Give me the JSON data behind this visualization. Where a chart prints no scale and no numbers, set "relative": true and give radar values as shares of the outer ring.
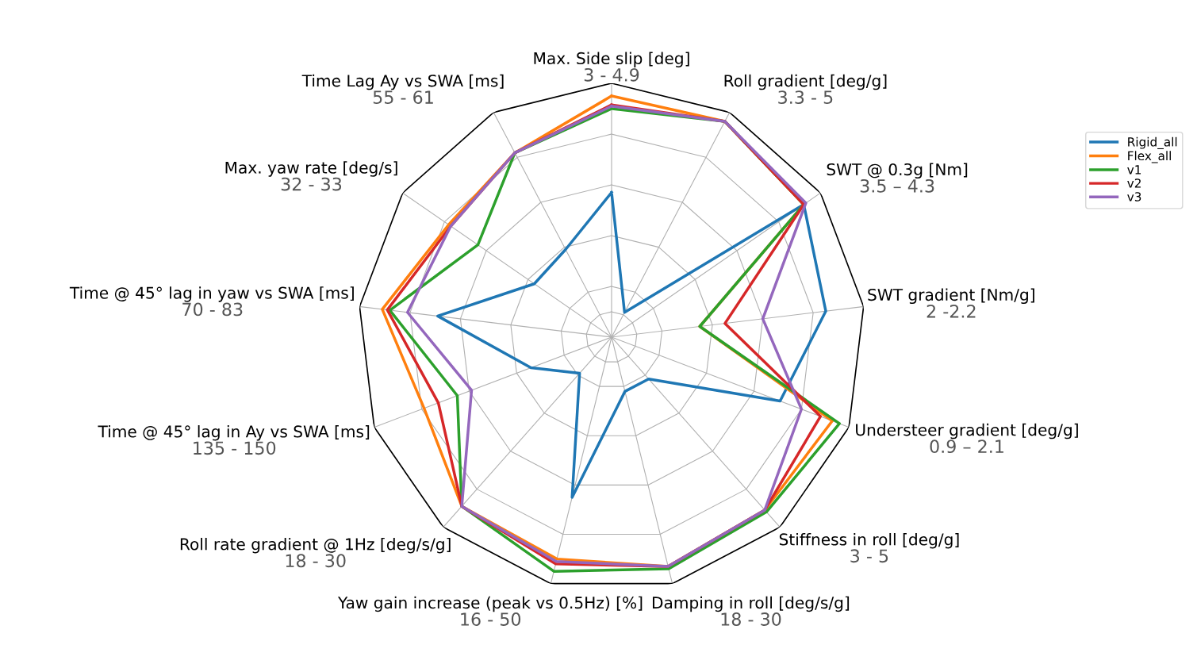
{
  "chart_data": {
    "type": "radar",
    "relative": true,
    "grid": true,
    "legend": "right",
    "categories": [
      "Max. Side slip [deg]",
      "Roll gradient [deg/g]",
      "SWT @ 0.3g [Nm]",
      "SWT gradient [Nm/g]",
      "Understeer gradient [deg/g]",
      "Stiffness in roll [deg/g]",
      "Damping in roll [deg/s/g]",
      "Yaw gain increase (peak vs 0.5Hz) [%]",
      "Roll rate gradient @ 1Hz [deg/s/g]",
      "Time @ 45° lag in Ay vs SWA [ms]",
      "Time @ 45° lag in yaw vs SWA [ms]",
      "Max. yaw rate [deg/s]",
      "Time Lag Ay vs SWA [ms]"
    ],
    "annotations": [
      "3 - 4.9",
      "3.3 - 5",
      "3.5 – 4.3",
      "2 -2.2",
      "0.9 – 2.1",
      "3 - 5",
      "18 - 30",
      "16 - 50",
      "18 - 30",
      "135 - 150",
      "70 - 83",
      "32 - 33",
      "55 - 61"
    ],
    "series": [
      {
        "name": "Rigid_all",
        "color": "#1f77b4",
        "values": [
          0.57,
          0.11,
          0.92,
          0.85,
          0.71,
          0.22,
          0.22,
          0.65,
          0.19,
          0.34,
          0.69,
          0.37,
          0.39
        ]
      },
      {
        "name": "Flex_all",
        "color": "#ff7f0e",
        "values": [
          0.95,
          0.96,
          0.92,
          0.35,
          0.93,
          0.91,
          0.93,
          0.9,
          0.89,
          0.79,
          0.91,
          0.78,
          0.82
        ]
      },
      {
        "name": "v1",
        "color": "#2ca02c",
        "values": [
          0.9,
          0.96,
          0.92,
          0.35,
          0.96,
          0.92,
          0.94,
          0.95,
          0.89,
          0.65,
          0.88,
          0.64,
          0.82
        ]
      },
      {
        "name": "v2",
        "color": "#d62728",
        "values": [
          0.915,
          0.96,
          0.92,
          0.45,
          0.88,
          0.91,
          0.93,
          0.92,
          0.89,
          0.73,
          0.89,
          0.77,
          0.82
        ]
      },
      {
        "name": "v3",
        "color": "#9467bd",
        "values": [
          0.91,
          0.96,
          0.93,
          0.6,
          0.8,
          0.91,
          0.93,
          0.91,
          0.89,
          0.59,
          0.81,
          0.77,
          0.82
        ]
      }
    ]
  }
}
